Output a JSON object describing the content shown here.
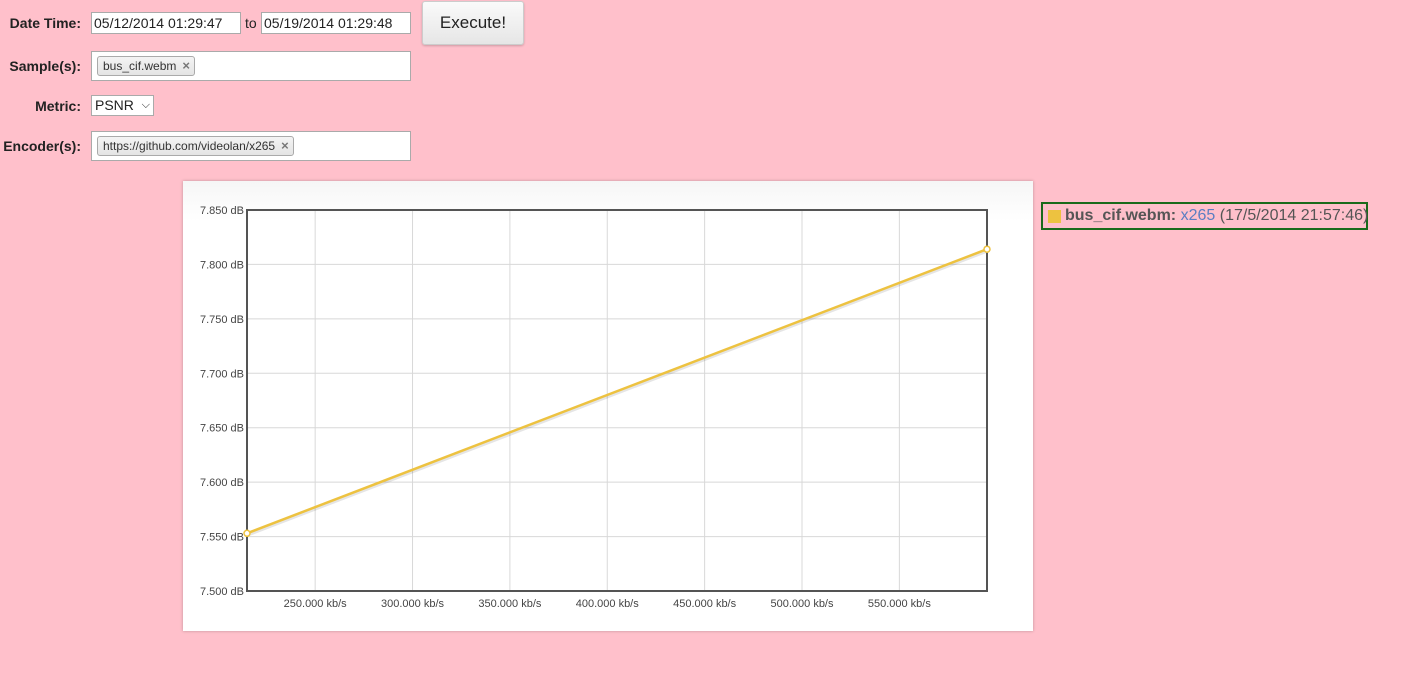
{
  "form": {
    "datetime_label": "Date Time:",
    "date_from": "05/12/2014 01:29:47",
    "to_label": "to",
    "date_to": "05/19/2014 01:29:48",
    "execute_label": "Execute!",
    "samples_label": "Sample(s):",
    "sample_tag": "bus_cif.webm",
    "metric_label": "Metric:",
    "metric_value": "PSNR",
    "encoders_label": "Encoder(s):",
    "encoder_tag": "https://github.com/videolan/x265",
    "tag_remove": "×"
  },
  "legend": {
    "sample": "bus_cif.webm:",
    "encoder": "x265",
    "date": "(17/5/2014 21:57:46)",
    "color": "#edc240"
  },
  "chart_data": {
    "type": "line",
    "xlim": [
      215,
      595
    ],
    "ylim": [
      7.5,
      7.85
    ],
    "x_ticks": [
      250,
      300,
      350,
      400,
      450,
      500,
      550
    ],
    "x_tick_labels": [
      "250.000 kb/s",
      "300.000 kb/s",
      "350.000 kb/s",
      "400.000 kb/s",
      "450.000 kb/s",
      "500.000 kb/s",
      "550.000 kb/s"
    ],
    "y_ticks": [
      7.5,
      7.55,
      7.6,
      7.65,
      7.7,
      7.75,
      7.8,
      7.85
    ],
    "y_tick_labels": [
      "7.500 dB",
      "7.550 dB",
      "7.600 dB",
      "7.650 dB",
      "7.700 dB",
      "7.750 dB",
      "7.800 dB",
      "7.850 dB"
    ],
    "grid": true,
    "series": [
      {
        "name": "bus_cif.webm: x265",
        "color": "#edc240",
        "x": [
          215,
          595
        ],
        "y": [
          7.553,
          7.814
        ]
      }
    ]
  }
}
